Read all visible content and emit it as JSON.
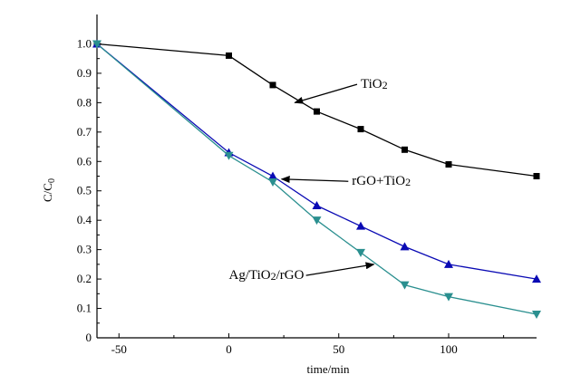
{
  "chart_data": {
    "type": "line",
    "title": "",
    "xlabel": "time/min",
    "ylabel": "C/C0",
    "xlim": [
      -60,
      140
    ],
    "ylim": [
      0,
      1.1
    ],
    "x_ticks": [
      -50,
      0,
      50,
      100
    ],
    "x_tick_labels": [
      "-50",
      "0",
      "50",
      "100"
    ],
    "y_ticks": [
      0,
      0.1,
      0.2,
      0.3,
      0.4,
      0.5,
      0.6,
      0.7,
      0.8,
      0.9,
      1.0
    ],
    "y_tick_labels": [
      "0",
      "0.1",
      "0.2",
      "0.3",
      "0.4",
      "0.5",
      "0.6",
      "0.7",
      "0.8",
      "0.9",
      "1.0"
    ],
    "grid": false,
    "series": [
      {
        "name": "TiO2",
        "color": "#000000",
        "marker": "square",
        "x": [
          -60,
          0,
          20,
          40,
          60,
          80,
          100,
          140
        ],
        "y": [
          1.0,
          0.96,
          0.86,
          0.77,
          0.71,
          0.64,
          0.59,
          0.55
        ]
      },
      {
        "name": "rGO+TiO2",
        "color": "#0a0ab4",
        "marker": "triangle-up",
        "x": [
          -60,
          0,
          20,
          40,
          60,
          80,
          100,
          140
        ],
        "y": [
          1.0,
          0.63,
          0.55,
          0.45,
          0.38,
          0.31,
          0.25,
          0.2
        ]
      },
      {
        "name": "Ag/TiO2/rGO",
        "color": "#2a8f8f",
        "marker": "triangle-down",
        "x": [
          -60,
          0,
          20,
          40,
          60,
          80,
          100,
          140
        ],
        "y": [
          1.0,
          0.62,
          0.53,
          0.4,
          0.29,
          0.18,
          0.14,
          0.08
        ]
      }
    ],
    "annotations": [
      {
        "text": "TiO2",
        "series": "TiO2",
        "x": 60,
        "y": 0.85,
        "arrow_to": [
          30,
          0.8
        ]
      },
      {
        "text": "rGO+TiO2",
        "series": "rGO+TiO2",
        "x": 56,
        "y": 0.52,
        "arrow_to": [
          24,
          0.54
        ]
      },
      {
        "text": "Ag/TiO2/rGO",
        "series": "Ag/TiO2/rGO",
        "x": 0,
        "y": 0.2,
        "arrow_to": [
          66,
          0.25
        ]
      }
    ]
  }
}
